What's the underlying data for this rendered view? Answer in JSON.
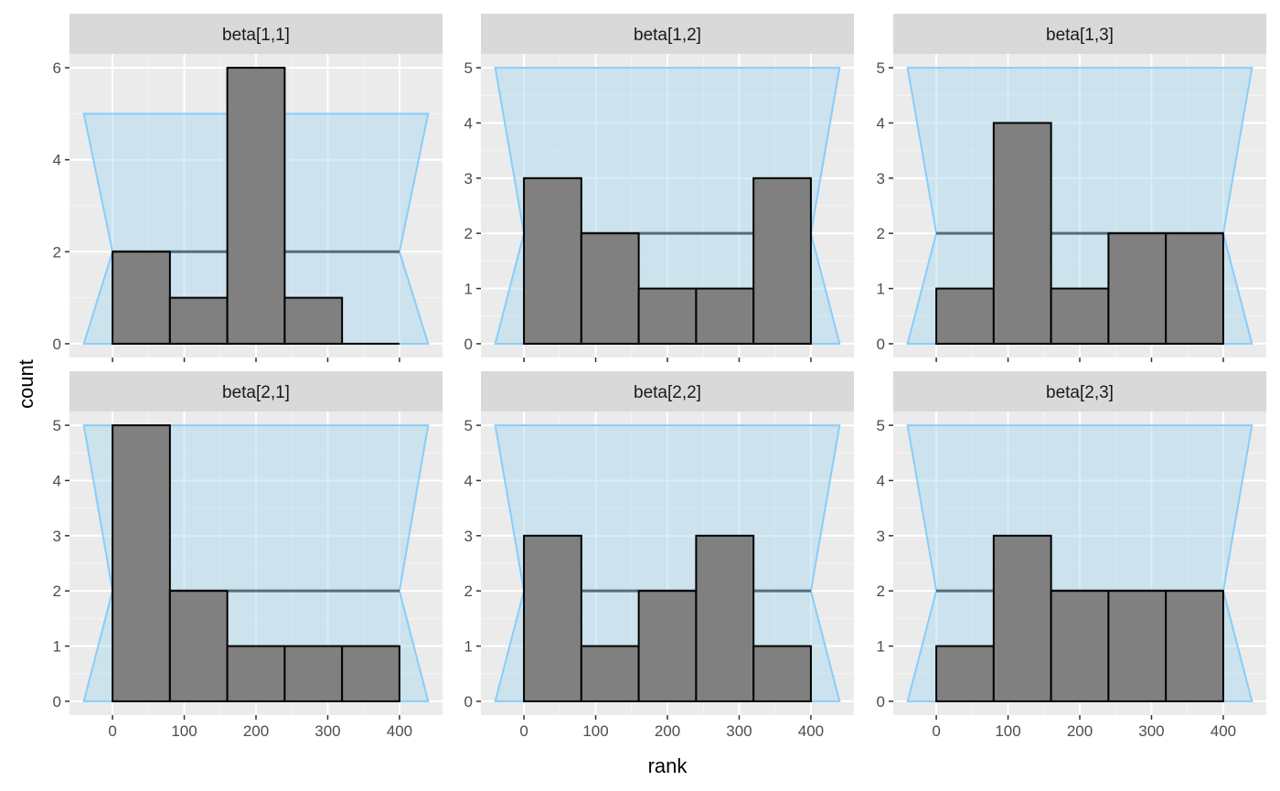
{
  "chart_data": {
    "type": "bar",
    "xlabel": "rank",
    "ylabel": "count",
    "colors": {
      "panel_background": "#EBEBEB",
      "grid": "#FFFFFF",
      "strip_background": "#D9D9D9",
      "bar_fill": "#808080",
      "bar_stroke": "#000000",
      "band_fill": "#A6D8F0",
      "band_stroke": "#87CEFA",
      "mean_line": "#566D7B"
    },
    "bin_edges": [
      0,
      80,
      160,
      240,
      320,
      400
    ],
    "band": {
      "x_outer": [
        -40,
        440
      ],
      "x_inner": [
        0,
        400
      ]
    },
    "x_ticks": [
      0,
      100,
      200,
      300,
      400
    ],
    "xlim": [
      -60,
      460
    ],
    "panels": [
      {
        "title": "beta[1,1]",
        "counts": [
          2,
          1,
          6,
          1,
          0
        ],
        "mean": 2,
        "band_low": 0,
        "band_high": 5,
        "y_ticks": [
          0,
          2,
          4,
          6
        ],
        "ylim": [
          -0.3,
          6.3
        ]
      },
      {
        "title": "beta[1,2]",
        "counts": [
          3,
          2,
          1,
          1,
          3
        ],
        "mean": 2,
        "band_low": 0,
        "band_high": 5,
        "y_ticks": [
          0,
          1,
          2,
          3,
          4,
          5
        ],
        "ylim": [
          -0.25,
          5.25
        ]
      },
      {
        "title": "beta[1,3]",
        "counts": [
          1,
          4,
          1,
          2,
          2
        ],
        "mean": 2,
        "band_low": 0,
        "band_high": 5,
        "y_ticks": [
          0,
          1,
          2,
          3,
          4,
          5
        ],
        "ylim": [
          -0.25,
          5.25
        ]
      },
      {
        "title": "beta[2,1]",
        "counts": [
          5,
          2,
          1,
          1,
          1
        ],
        "mean": 2,
        "band_low": 0,
        "band_high": 5,
        "y_ticks": [
          0,
          1,
          2,
          3,
          4,
          5
        ],
        "ylim": [
          -0.25,
          5.25
        ]
      },
      {
        "title": "beta[2,2]",
        "counts": [
          3,
          1,
          2,
          3,
          1
        ],
        "mean": 2,
        "band_low": 0,
        "band_high": 5,
        "y_ticks": [
          0,
          1,
          2,
          3,
          4,
          5
        ],
        "ylim": [
          -0.25,
          5.25
        ]
      },
      {
        "title": "beta[2,3]",
        "counts": [
          1,
          3,
          2,
          2,
          2
        ],
        "mean": 2,
        "band_low": 0,
        "band_high": 5,
        "y_ticks": [
          0,
          1,
          2,
          3,
          4,
          5
        ],
        "ylim": [
          -0.25,
          5.25
        ]
      }
    ]
  }
}
